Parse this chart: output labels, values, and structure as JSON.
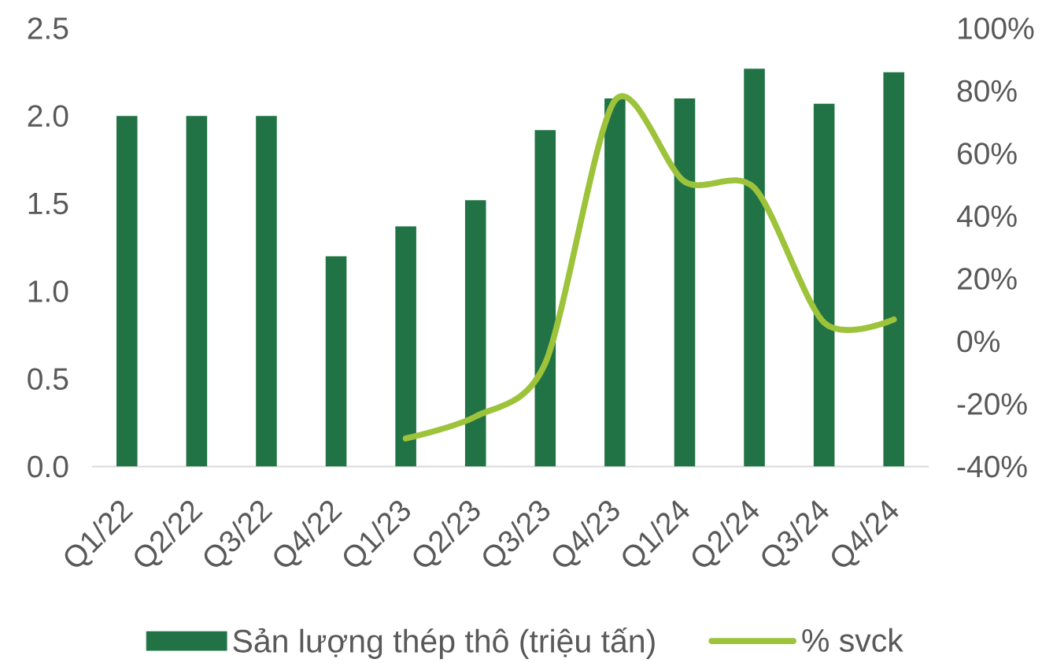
{
  "chart_data": {
    "type": "bar",
    "categories": [
      "Q1/22",
      "Q2/22",
      "Q3/22",
      "Q4/22",
      "Q1/23",
      "Q2/23",
      "Q3/23",
      "Q4/23",
      "Q1/24",
      "Q2/24",
      "Q3/24",
      "Q4/24"
    ],
    "series": [
      {
        "name": "Sản lượng thép thô (triệu tấn)",
        "color": "#217346",
        "values": [
          2.0,
          2.0,
          2.0,
          1.2,
          1.37,
          1.52,
          1.92,
          2.1,
          2.1,
          2.27,
          2.07,
          2.25
        ]
      },
      {
        "name": "% svck",
        "type": "line",
        "axis": "y2",
        "color": "#9dc33b",
        "values": [
          null,
          null,
          null,
          null,
          -31,
          -24,
          -7,
          77,
          51,
          49,
          6,
          7
        ]
      }
    ],
    "ylim": [
      0,
      2.5
    ],
    "yticks": [
      {
        "value": 0,
        "label": "0.0"
      },
      0.5,
      {
        "value": 1,
        "label": "1.0"
      },
      1.5,
      {
        "value": 2,
        "label": "2.0"
      },
      2.5
    ],
    "y2lim": [
      -40,
      100
    ],
    "y2ticks": [
      {
        "value": -40,
        "label": "-40%"
      },
      {
        "value": -20,
        "label": "-20%"
      },
      {
        "value": 0,
        "label": "0%"
      },
      {
        "value": 20,
        "label": "20%"
      },
      {
        "value": 40,
        "label": "40%"
      },
      {
        "value": 60,
        "label": "60%"
      },
      {
        "value": 80,
        "label": "80%"
      },
      {
        "value": 100,
        "label": "100%"
      }
    ],
    "legend": "bottom"
  }
}
